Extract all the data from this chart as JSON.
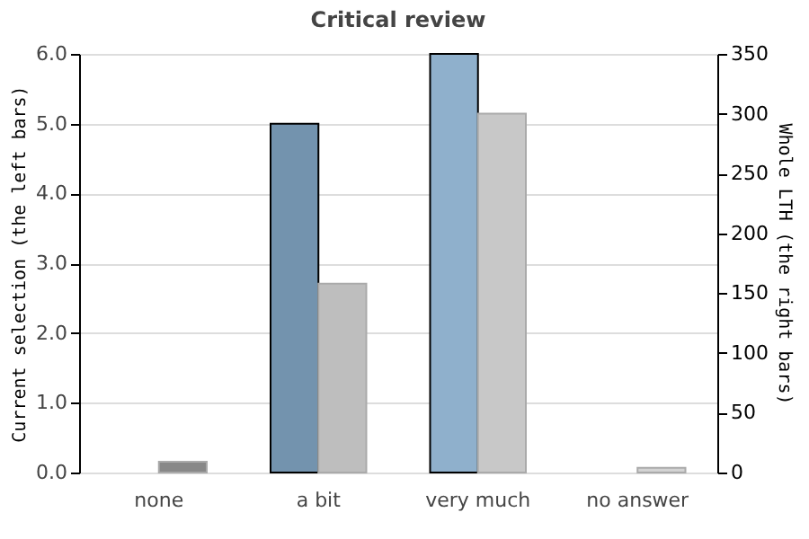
{
  "chart_data": {
    "type": "bar",
    "title": "Critical review",
    "categories": [
      "none",
      "a bit",
      "very much",
      "no answer"
    ],
    "series": [
      {
        "colors": [
          "#7393ae",
          "#7393ae",
          "#8fb0cc",
          "#8fb0cc"
        ],
        "values": [
          0,
          5.0,
          6.0,
          0
        ]
      },
      {
        "colors": [
          "#888888",
          "#bebebe",
          "#c8c8c8",
          "#d3d3d3"
        ],
        "values": [
          9,
          158,
          300,
          4
        ],
        "axis": "y2"
      }
    ],
    "ylabel": "Current selection (the left bars)",
    "y2label": "Whole LTH (the right bars)",
    "ylim": [
      0,
      6
    ],
    "yticks": [
      {
        "value": 0,
        "label": "0.0"
      },
      {
        "value": 1,
        "label": "1.0"
      },
      {
        "value": 2,
        "label": "2.0"
      },
      {
        "value": 3,
        "label": "3.0"
      },
      {
        "value": 4,
        "label": "4.0"
      },
      {
        "value": 5,
        "label": "5.0"
      },
      {
        "value": 6,
        "label": "6.0"
      }
    ],
    "y2lim": [
      0,
      350
    ],
    "y2ticks": [
      0,
      50,
      100,
      150,
      200,
      250,
      300,
      350
    ],
    "grid": "y"
  }
}
